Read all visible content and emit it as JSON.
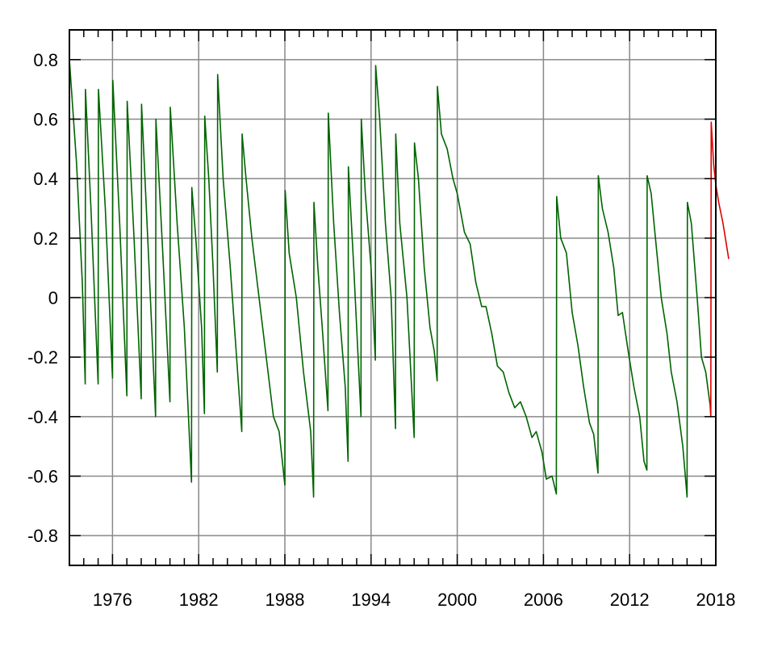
{
  "chart_data": {
    "type": "line",
    "title": "",
    "xlabel": "",
    "ylabel": "",
    "xlim": [
      1973,
      2018
    ],
    "ylim": [
      -0.9,
      0.9
    ],
    "grid": true,
    "x_ticks": [
      1976,
      1982,
      1988,
      1994,
      2000,
      2006,
      2012,
      2018
    ],
    "x_tick_labels": [
      "1976",
      "1982",
      "1988",
      "1994",
      "2000",
      "2006",
      "2012",
      "2018"
    ],
    "y_ticks": [
      0.8,
      0.6,
      0.4,
      0.2,
      0,
      -0.2,
      -0.4,
      -0.6,
      -0.8
    ],
    "y_tick_labels": [
      "0.8",
      "0.6",
      "0.4",
      "0.2",
      "0",
      "-0.2",
      "-0.4",
      "-0.6",
      "-0.8"
    ],
    "colors": {
      "primary": "#006400",
      "secondary": "#e00000",
      "grid": "#888888"
    },
    "series": [
      {
        "color": "#006400",
        "points": [
          [
            1973.0,
            0.8
          ],
          [
            1973.5,
            0.45
          ],
          [
            1973.9,
            0.05
          ],
          [
            1974.1,
            -0.29
          ],
          [
            1974.12,
            0.7
          ],
          [
            1974.5,
            0.3
          ],
          [
            1975.0,
            -0.29
          ],
          [
            1975.02,
            0.7
          ],
          [
            1975.5,
            0.3
          ],
          [
            1976.0,
            -0.27
          ],
          [
            1976.02,
            0.73
          ],
          [
            1976.5,
            0.25
          ],
          [
            1977.0,
            -0.33
          ],
          [
            1977.02,
            0.66
          ],
          [
            1977.5,
            0.2
          ],
          [
            1978.0,
            -0.34
          ],
          [
            1978.02,
            0.65
          ],
          [
            1978.5,
            0.15
          ],
          [
            1979.0,
            -0.4
          ],
          [
            1979.02,
            0.6
          ],
          [
            1979.5,
            0.15
          ],
          [
            1980.0,
            -0.35
          ],
          [
            1980.02,
            0.64
          ],
          [
            1980.5,
            0.25
          ],
          [
            1981.0,
            -0.1
          ],
          [
            1981.5,
            -0.62
          ],
          [
            1981.52,
            0.37
          ],
          [
            1981.8,
            0.2
          ],
          [
            1982.2,
            -0.1
          ],
          [
            1982.4,
            -0.39
          ],
          [
            1982.42,
            0.61
          ],
          [
            1982.7,
            0.4
          ],
          [
            1983.0,
            0.1
          ],
          [
            1983.3,
            -0.25
          ],
          [
            1983.32,
            0.75
          ],
          [
            1983.7,
            0.4
          ],
          [
            1984.2,
            0.1
          ],
          [
            1985.0,
            -0.45
          ],
          [
            1985.02,
            0.55
          ],
          [
            1985.3,
            0.4
          ],
          [
            1985.7,
            0.2
          ],
          [
            1986.2,
            0.0
          ],
          [
            1986.7,
            -0.2
          ],
          [
            1987.2,
            -0.4
          ],
          [
            1987.6,
            -0.45
          ],
          [
            1988.0,
            -0.63
          ],
          [
            1988.02,
            0.36
          ],
          [
            1988.3,
            0.15
          ],
          [
            1988.8,
            0.0
          ],
          [
            1989.3,
            -0.25
          ],
          [
            1989.8,
            -0.45
          ],
          [
            1990.0,
            -0.67
          ],
          [
            1990.02,
            0.32
          ],
          [
            1990.3,
            0.1
          ],
          [
            1990.6,
            -0.1
          ],
          [
            1991.0,
            -0.38
          ],
          [
            1991.02,
            0.62
          ],
          [
            1991.4,
            0.25
          ],
          [
            1991.8,
            -0.05
          ],
          [
            1992.2,
            -0.3
          ],
          [
            1992.4,
            -0.55
          ],
          [
            1992.42,
            0.44
          ],
          [
            1992.8,
            0.1
          ],
          [
            1993.3,
            -0.4
          ],
          [
            1993.32,
            0.6
          ],
          [
            1993.6,
            0.35
          ],
          [
            1994.0,
            0.1
          ],
          [
            1994.3,
            -0.21
          ],
          [
            1994.32,
            0.78
          ],
          [
            1994.6,
            0.6
          ],
          [
            1995.0,
            0.25
          ],
          [
            1995.4,
            0.0
          ],
          [
            1995.7,
            -0.44
          ],
          [
            1995.72,
            0.55
          ],
          [
            1996.0,
            0.25
          ],
          [
            1996.5,
            0.0
          ],
          [
            1997.0,
            -0.47
          ],
          [
            1997.02,
            0.52
          ],
          [
            1997.3,
            0.4
          ],
          [
            1997.7,
            0.1
          ],
          [
            1998.1,
            -0.1
          ],
          [
            1998.4,
            -0.18
          ],
          [
            1998.6,
            -0.28
          ],
          [
            1998.62,
            0.71
          ],
          [
            1998.9,
            0.55
          ],
          [
            1999.3,
            0.5
          ],
          [
            1999.7,
            0.4
          ],
          [
            2000.0,
            0.35
          ],
          [
            2000.5,
            0.22
          ],
          [
            2000.9,
            0.18
          ],
          [
            2001.3,
            0.05
          ],
          [
            2001.7,
            -0.03
          ],
          [
            2002.0,
            -0.03
          ],
          [
            2002.4,
            -0.12
          ],
          [
            2002.8,
            -0.23
          ],
          [
            2003.2,
            -0.25
          ],
          [
            2003.6,
            -0.32
          ],
          [
            2004.0,
            -0.37
          ],
          [
            2004.4,
            -0.35
          ],
          [
            2004.8,
            -0.4
          ],
          [
            2005.2,
            -0.47
          ],
          [
            2005.5,
            -0.45
          ],
          [
            2005.9,
            -0.52
          ],
          [
            2006.2,
            -0.61
          ],
          [
            2006.6,
            -0.6
          ],
          [
            2006.9,
            -0.66
          ],
          [
            2006.92,
            0.34
          ],
          [
            2007.2,
            0.2
          ],
          [
            2007.6,
            0.15
          ],
          [
            2008.0,
            -0.05
          ],
          [
            2008.4,
            -0.16
          ],
          [
            2008.8,
            -0.3
          ],
          [
            2009.2,
            -0.42
          ],
          [
            2009.5,
            -0.46
          ],
          [
            2009.8,
            -0.59
          ],
          [
            2009.82,
            0.41
          ],
          [
            2010.1,
            0.3
          ],
          [
            2010.5,
            0.22
          ],
          [
            2010.9,
            0.1
          ],
          [
            2011.2,
            -0.06
          ],
          [
            2011.5,
            -0.05
          ],
          [
            2011.9,
            -0.18
          ],
          [
            2012.3,
            -0.3
          ],
          [
            2012.7,
            -0.4
          ],
          [
            2013.0,
            -0.55
          ],
          [
            2013.2,
            -0.58
          ],
          [
            2013.22,
            0.41
          ],
          [
            2013.5,
            0.35
          ],
          [
            2013.8,
            0.2
          ],
          [
            2014.2,
            0.0
          ],
          [
            2014.6,
            -0.12
          ],
          [
            2014.9,
            -0.25
          ],
          [
            2015.3,
            -0.35
          ],
          [
            2015.7,
            -0.5
          ],
          [
            2016.0,
            -0.67
          ],
          [
            2016.02,
            0.32
          ],
          [
            2016.3,
            0.25
          ],
          [
            2016.7,
            0.0
          ],
          [
            2017.0,
            -0.2
          ],
          [
            2017.3,
            -0.25
          ],
          [
            2017.6,
            -0.36
          ]
        ]
      },
      {
        "color": "#e00000",
        "points": [
          [
            2017.6,
            -0.36
          ],
          [
            2017.65,
            -0.4
          ],
          [
            2017.68,
            0.59
          ],
          [
            2017.85,
            0.45
          ],
          [
            2018.0,
            0.38
          ],
          [
            2018.2,
            0.32
          ],
          [
            2018.5,
            0.25
          ],
          [
            2018.9,
            0.13
          ]
        ]
      }
    ]
  }
}
